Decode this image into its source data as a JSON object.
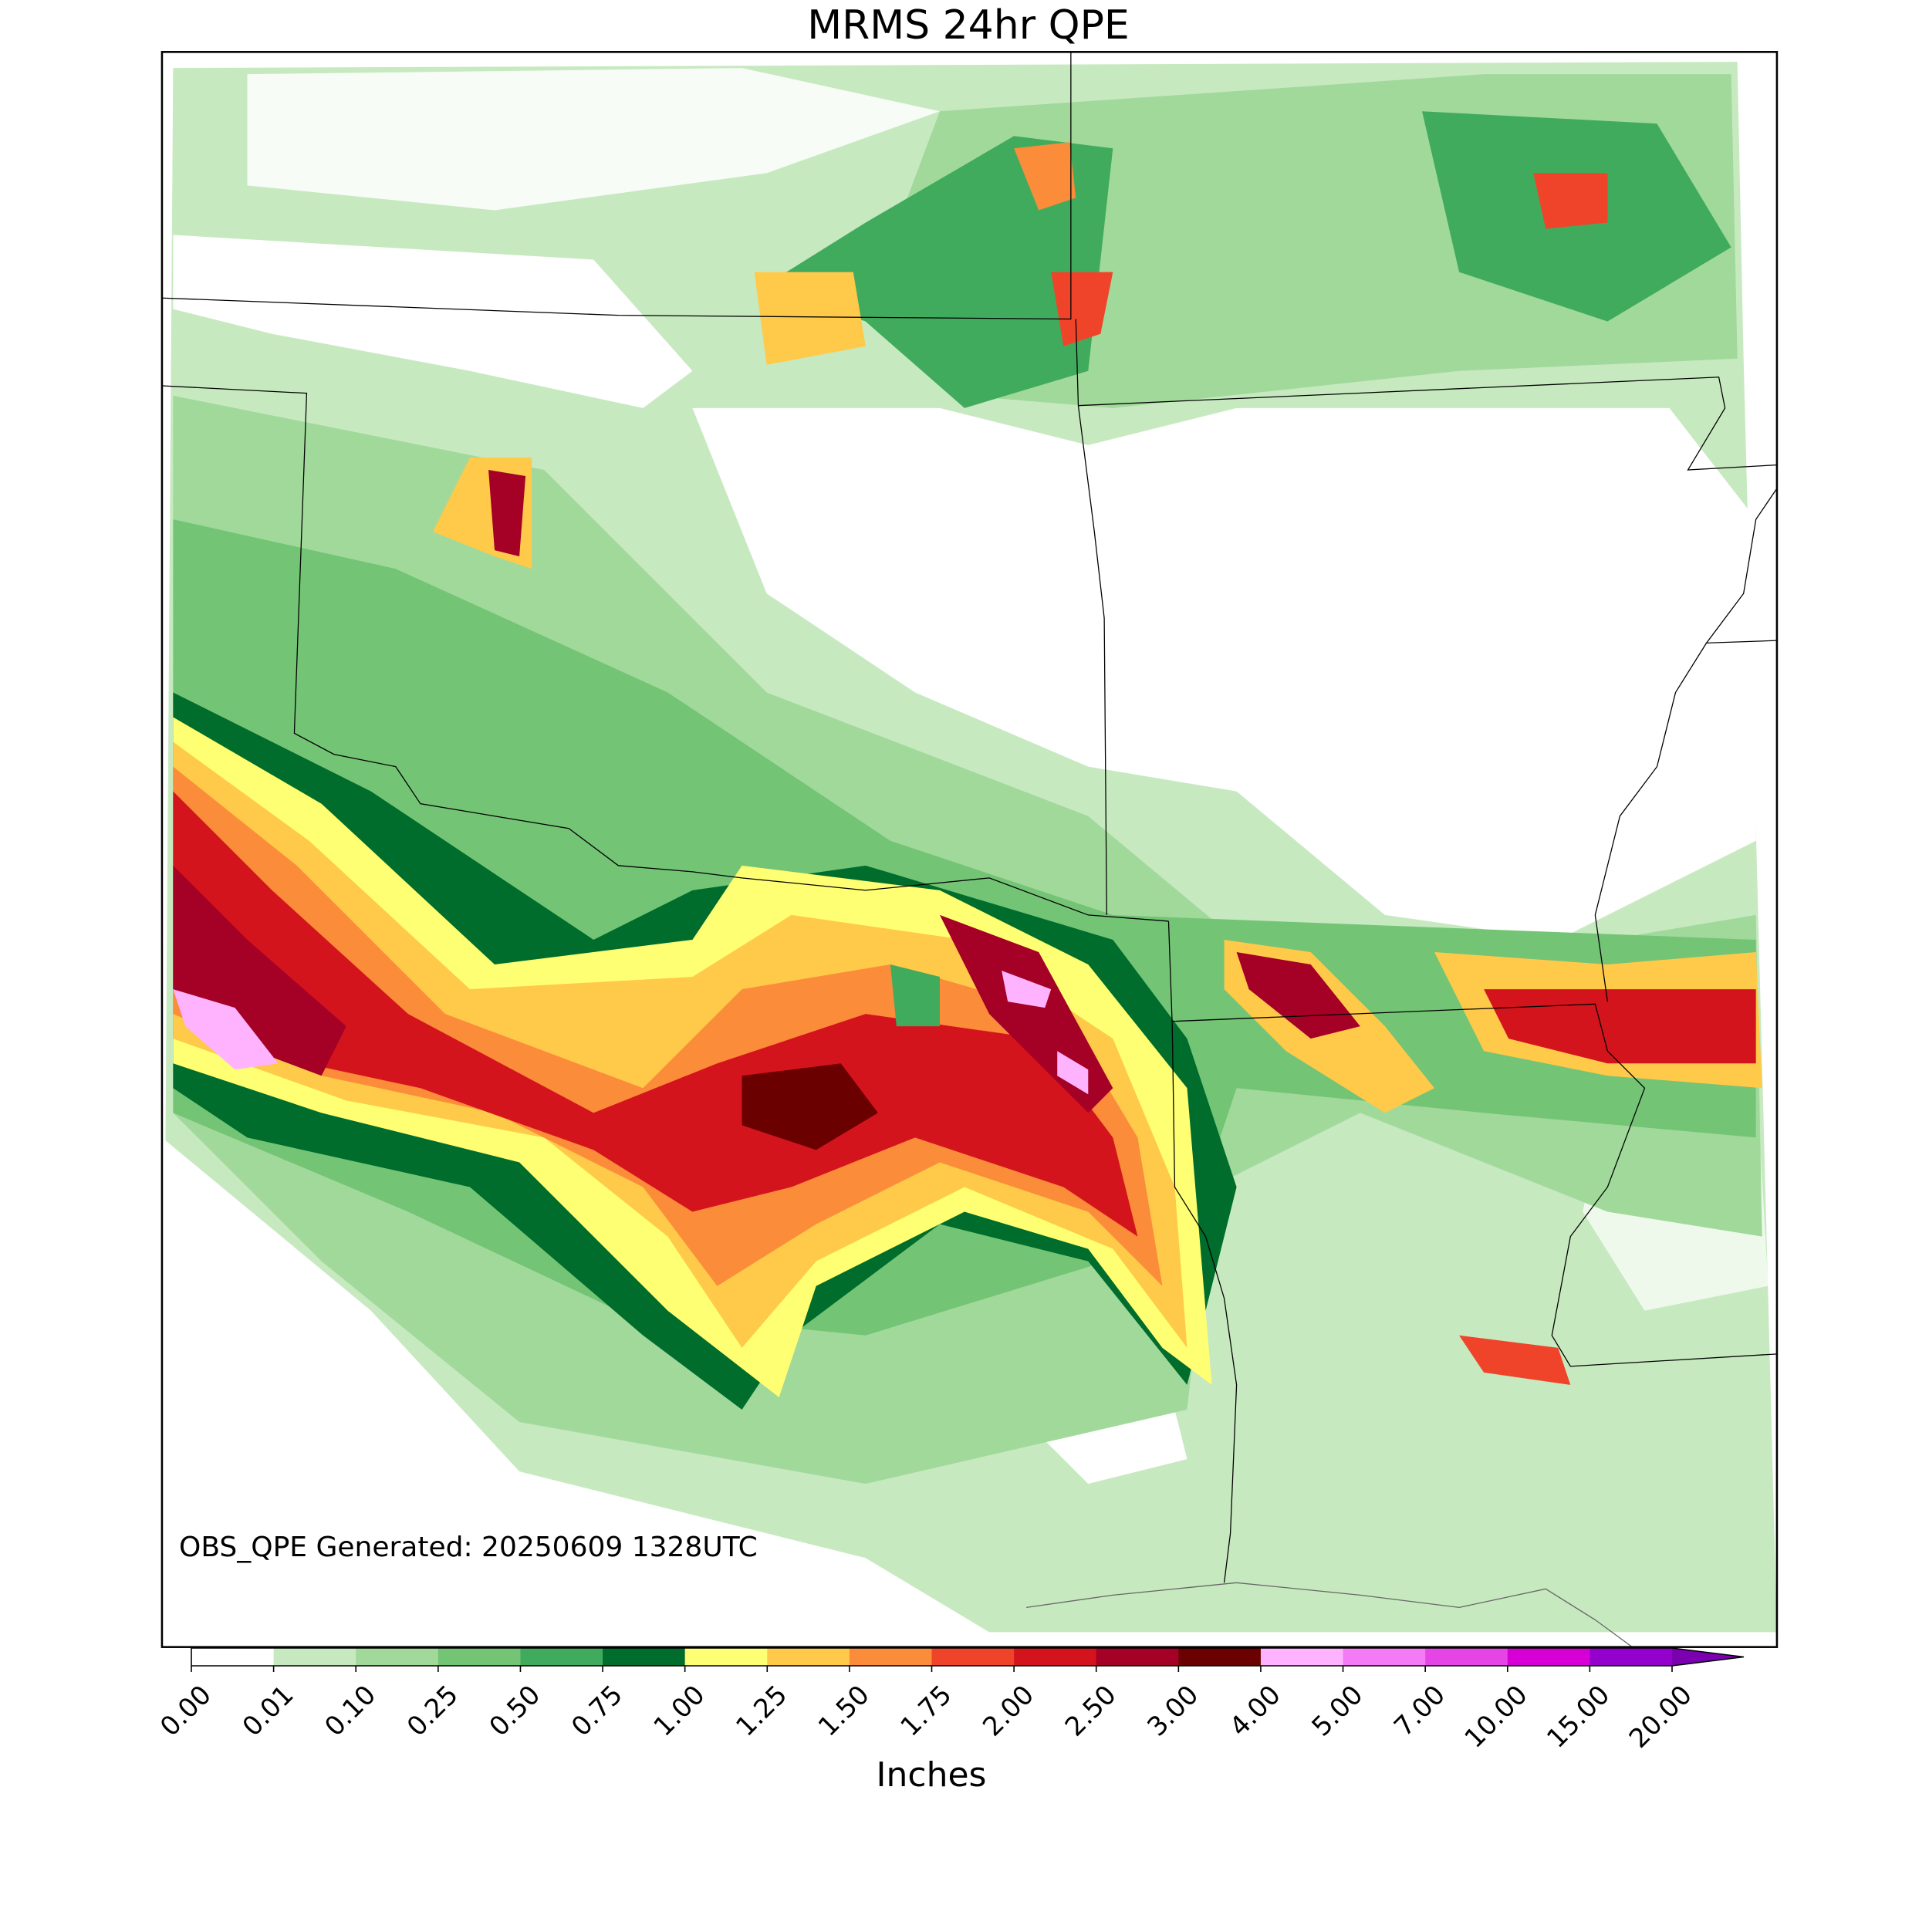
{
  "title": "MRMS 24hr QPE",
  "annotation": "OBS_QPE Generated: 20250609 1328UTC",
  "colorbar": {
    "label": "Inches",
    "ticks": [
      {
        "value": 0,
        "label": "0.00"
      },
      {
        "value": 0.01,
        "label": "0.01"
      },
      {
        "value": 0.1,
        "label": "0.10"
      },
      {
        "value": 0.25,
        "label": "0.25"
      },
      {
        "value": 0.5,
        "label": "0.50"
      },
      {
        "value": 0.75,
        "label": "0.75"
      },
      {
        "value": 1,
        "label": "1.00"
      },
      {
        "value": 1.25,
        "label": "1.25"
      },
      {
        "value": 1.5,
        "label": "1.50"
      },
      {
        "value": 1.75,
        "label": "1.75"
      },
      {
        "value": 2,
        "label": "2.00"
      },
      {
        "value": 2.5,
        "label": "2.50"
      },
      {
        "value": 3,
        "label": "3.00"
      },
      {
        "value": 4,
        "label": "4.00"
      },
      {
        "value": 5,
        "label": "5.00"
      },
      {
        "value": 7,
        "label": "7.00"
      },
      {
        "value": 10,
        "label": "10.00"
      },
      {
        "value": 15,
        "label": "15.00"
      },
      {
        "value": 20,
        "label": "20.00"
      }
    ],
    "colors": [
      "#ffffff",
      "#c7e9c0",
      "#a1d99b",
      "#74c476",
      "#41ab5d",
      "#006d2c",
      "#ffff73",
      "#ffc94a",
      "#fb8c3a",
      "#f0442a",
      "#d4141c",
      "#a50026",
      "#6b0000",
      "#ffb3ff",
      "#f57af5",
      "#e645e6",
      "#d600d6",
      "#9400cc"
    ],
    "extend_color": "#7a00b0"
  }
}
